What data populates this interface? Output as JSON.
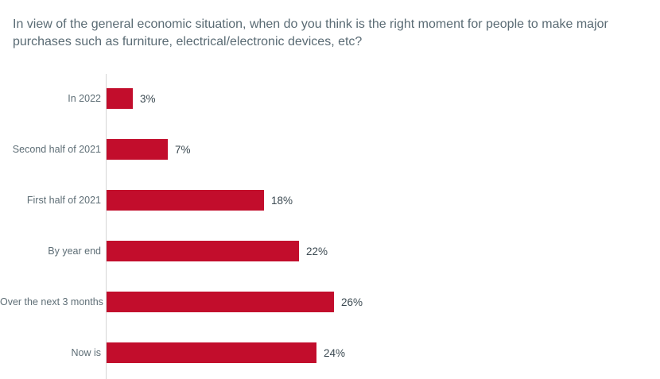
{
  "title": "In view of the general economic situation, when do you think is the right moment for people to make major purchases such as furniture, electrical/electronic devices, etc?",
  "colors": {
    "bar": "#C20D2C",
    "title_text": "#5A6B74",
    "category_text": "#5E6E76",
    "value_text": "#3C4A52",
    "axis_line": "#D6D6D6",
    "background": "#FFFFFF"
  },
  "chart_data": {
    "type": "bar",
    "orientation": "horizontal",
    "title": "In view of the general economic situation, when do you think is the right moment for people to make major purchases such as furniture, electrical/electronic devices, etc?",
    "categories": [
      "In 2022",
      "Second half of 2021",
      "First half of 2021",
      "By year end",
      "Over the next 3 months",
      "Now is"
    ],
    "values": [
      3,
      7,
      18,
      22,
      26,
      24
    ],
    "value_labels": [
      "3%",
      "7%",
      "18%",
      "22%",
      "26%",
      "24%"
    ],
    "unit": "%",
    "xlabel": "",
    "ylabel": "",
    "xlim": [
      0,
      30
    ],
    "grid": false,
    "legend": false,
    "data_labels": "outside-end"
  }
}
